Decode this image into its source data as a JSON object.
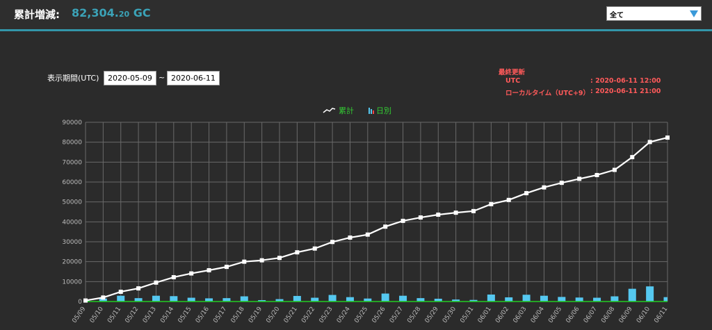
{
  "header": {
    "title_label": "累計増減:",
    "total_main": "82,304.",
    "total_decimal": "20",
    "total_unit": " GC"
  },
  "filter": {
    "selected": "全て"
  },
  "period": {
    "label": "表示期間(UTC)",
    "from": "2020-05-09",
    "separator": "~",
    "to": "2020-06-11"
  },
  "last_updated": {
    "title": "最終更新",
    "utc_label": "UTC",
    "utc_value": ": 2020-06-11 12:00",
    "local_label": "ローカルタイム（UTC+9）",
    "local_value": ": 2020-06-11 21:00"
  },
  "colors": {
    "accent": "#3396aa",
    "line": "#ffffff",
    "bar": "#55c8f0",
    "legend_text": "#33cc33",
    "updated": "#ff5a5a"
  },
  "chart_data": {
    "type": "bar",
    "legend": [
      "累計",
      "日別"
    ],
    "categories": [
      "05/09",
      "05/10",
      "05/11",
      "05/12",
      "05/13",
      "05/14",
      "05/15",
      "05/16",
      "05/17",
      "05/18",
      "05/19",
      "05/20",
      "05/21",
      "05/22",
      "05/23",
      "05/24",
      "05/25",
      "05/26",
      "05/27",
      "05/28",
      "05/29",
      "05/30",
      "05/31",
      "06/01",
      "06/02",
      "06/03",
      "06/04",
      "06/05",
      "06/06",
      "06/07",
      "06/08",
      "06/09",
      "06/10",
      "06/11"
    ],
    "series": [
      {
        "name": "累計",
        "type": "line",
        "values": [
          500,
          2000,
          4900,
          6600,
          9500,
          12200,
          14100,
          15700,
          17400,
          20000,
          20700,
          21900,
          24700,
          26600,
          29900,
          32100,
          33600,
          37600,
          40500,
          42200,
          43600,
          44600,
          45400,
          48900,
          51000,
          54400,
          57300,
          59600,
          61600,
          63500,
          66100,
          72500,
          80100,
          82300
        ]
      },
      {
        "name": "日別",
        "type": "bar",
        "values": [
          500,
          1500,
          2900,
          1700,
          2900,
          2700,
          1900,
          1600,
          1700,
          2600,
          700,
          1200,
          2800,
          1900,
          3300,
          2200,
          1500,
          4000,
          2900,
          1700,
          1400,
          1000,
          800,
          3500,
          2100,
          3400,
          2900,
          2300,
          2000,
          1900,
          2600,
          6400,
          7600,
          2200
        ]
      }
    ],
    "ylim": [
      0,
      90000
    ],
    "yticks": [
      0,
      10000,
      20000,
      30000,
      40000,
      50000,
      60000,
      70000,
      80000,
      90000
    ],
    "grid": true,
    "legend_position": "top-center"
  }
}
